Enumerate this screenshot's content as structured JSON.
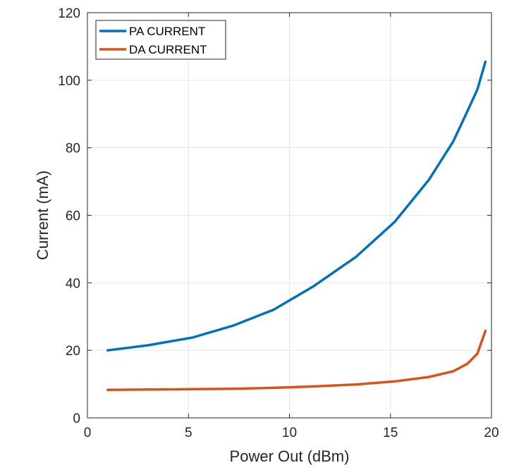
{
  "chart_data": {
    "type": "line",
    "xlabel": "Power Out (dBm)",
    "ylabel": "Current (mA)",
    "xlim": [
      0,
      20
    ],
    "ylim": [
      0,
      120
    ],
    "xticks": [
      0,
      5,
      10,
      15,
      20
    ],
    "yticks": [
      0,
      20,
      40,
      60,
      80,
      100,
      120
    ],
    "grid": true,
    "legend_position": "top-left",
    "series": [
      {
        "name": "PA CURRENT",
        "color": "#0072BD",
        "x": [
          1.0,
          3.0,
          5.2,
          7.2,
          9.2,
          11.2,
          13.3,
          15.2,
          16.9,
          18.1,
          18.8,
          19.3,
          19.7
        ],
        "y": [
          20.0,
          21.5,
          23.8,
          27.3,
          32.0,
          39.0,
          47.7,
          58.0,
          70.5,
          81.8,
          90.7,
          97.2,
          105.5
        ]
      },
      {
        "name": "DA CURRENT",
        "color": "#D95319",
        "x": [
          1.0,
          3.0,
          5.2,
          7.2,
          9.2,
          11.2,
          13.3,
          15.2,
          16.9,
          18.1,
          18.8,
          19.3,
          19.7
        ],
        "y": [
          8.3,
          8.4,
          8.5,
          8.6,
          8.9,
          9.3,
          9.9,
          10.8,
          12.1,
          13.8,
          16.0,
          19.0,
          25.8
        ]
      }
    ]
  }
}
